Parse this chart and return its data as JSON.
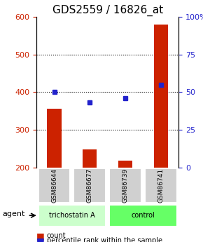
{
  "title": "GDS2559 / 16826_at",
  "samples": [
    "GSM86644",
    "GSM86677",
    "GSM86739",
    "GSM86741"
  ],
  "counts": [
    355,
    248,
    217,
    580
  ],
  "percentiles": [
    50,
    43,
    46,
    55
  ],
  "ylim_left": [
    200,
    600
  ],
  "ylim_right": [
    0,
    100
  ],
  "yticks_left": [
    200,
    300,
    400,
    500,
    600
  ],
  "yticks_right": [
    0,
    25,
    50,
    75,
    100
  ],
  "bar_color": "#cc2200",
  "dot_color": "#2222cc",
  "bar_width": 0.4,
  "groups": [
    {
      "label": "trichostatin A",
      "samples": [
        0,
        1
      ],
      "color": "#ccffcc"
    },
    {
      "label": "control",
      "samples": [
        2,
        3
      ],
      "color": "#66ff66"
    }
  ],
  "agent_label": "agent",
  "legend_count_label": "count",
  "legend_pct_label": "percentile rank within the sample",
  "title_fontsize": 11,
  "tick_fontsize": 8,
  "label_fontsize": 8
}
